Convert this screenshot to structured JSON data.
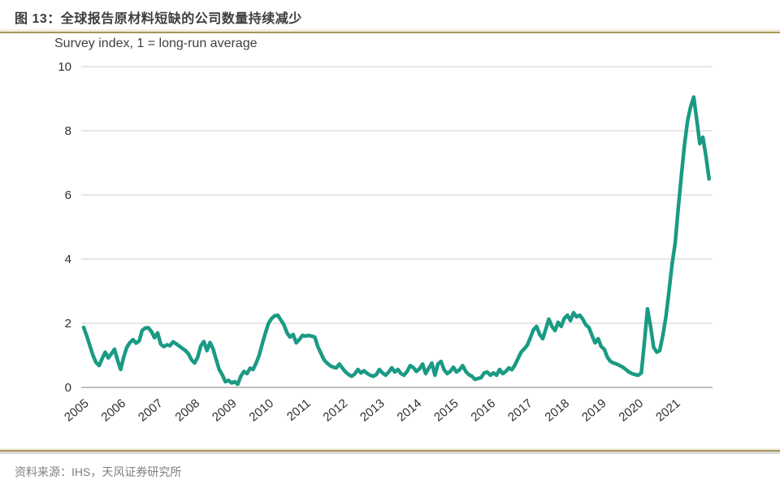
{
  "header": {
    "title": "图 13：全球报告原材料短缺的公司数量持续减少"
  },
  "footer": {
    "source": "资料来源：IHS，天风证券研究所"
  },
  "colors": {
    "line": "#1a9a84",
    "rule_gold": "#a6965a",
    "rule_cream": "#f2eedd",
    "grid": "#d8d8d8",
    "zero_axis": "#ababab",
    "title_text": "#3d3d3d",
    "axis_text": "#2e2e2e",
    "source_text": "#7f7f7f"
  },
  "chart_data": {
    "type": "line",
    "title": "全球报告原材料短缺的公司数量持续减少",
    "subtitle": "Survey index, 1 = long-run average",
    "xlabel": "",
    "ylabel": "",
    "x_tick_labels": [
      "2005",
      "2006",
      "2007",
      "2008",
      "2009",
      "2010",
      "2011",
      "2012",
      "2013",
      "2014",
      "2015",
      "2016",
      "2017",
      "2018",
      "2019",
      "2020",
      "2021"
    ],
    "y_ticks": [
      0,
      2,
      4,
      6,
      8,
      10
    ],
    "ylim": [
      0,
      10
    ],
    "xlim": [
      2005.0,
      2022.0
    ],
    "grid": "horizontal",
    "legend": "none",
    "series": [
      {
        "color": "#1a9a84",
        "x_start_year": 2005,
        "points_per_year": 12,
        "values": [
          1.87,
          1.6,
          1.3,
          1.0,
          0.78,
          0.68,
          0.9,
          1.1,
          0.92,
          1.05,
          1.19,
          0.85,
          0.56,
          0.95,
          1.25,
          1.4,
          1.49,
          1.38,
          1.45,
          1.78,
          1.85,
          1.86,
          1.74,
          1.55,
          1.7,
          1.35,
          1.27,
          1.33,
          1.3,
          1.42,
          1.36,
          1.29,
          1.22,
          1.15,
          1.05,
          0.86,
          0.76,
          0.94,
          1.29,
          1.43,
          1.15,
          1.4,
          1.2,
          0.87,
          0.56,
          0.39,
          0.18,
          0.22,
          0.14,
          0.18,
          0.1,
          0.35,
          0.5,
          0.43,
          0.6,
          0.56,
          0.76,
          1.01,
          1.37,
          1.7,
          2.0,
          2.15,
          2.23,
          2.25,
          2.1,
          1.95,
          1.7,
          1.57,
          1.65,
          1.39,
          1.49,
          1.62,
          1.6,
          1.62,
          1.6,
          1.57,
          1.27,
          1.06,
          0.86,
          0.76,
          0.68,
          0.63,
          0.61,
          0.73,
          0.6,
          0.48,
          0.4,
          0.35,
          0.42,
          0.56,
          0.45,
          0.52,
          0.44,
          0.38,
          0.35,
          0.4,
          0.56,
          0.45,
          0.38,
          0.48,
          0.61,
          0.48,
          0.56,
          0.43,
          0.38,
          0.5,
          0.68,
          0.62,
          0.5,
          0.58,
          0.73,
          0.43,
          0.6,
          0.76,
          0.38,
          0.73,
          0.81,
          0.55,
          0.43,
          0.5,
          0.63,
          0.48,
          0.55,
          0.68,
          0.5,
          0.4,
          0.35,
          0.25,
          0.28,
          0.3,
          0.45,
          0.48,
          0.38,
          0.45,
          0.38,
          0.56,
          0.43,
          0.5,
          0.61,
          0.55,
          0.7,
          0.9,
          1.1,
          1.2,
          1.32,
          1.55,
          1.8,
          1.9,
          1.65,
          1.52,
          1.82,
          2.13,
          1.9,
          1.77,
          2.03,
          1.9,
          2.15,
          2.25,
          2.08,
          2.33,
          2.2,
          2.25,
          2.13,
          1.95,
          1.87,
          1.62,
          1.39,
          1.52,
          1.27,
          1.19,
          0.94,
          0.81,
          0.76,
          0.73,
          0.68,
          0.63,
          0.56,
          0.48,
          0.43,
          0.4,
          0.38,
          0.45,
          1.4,
          2.45,
          1.9,
          1.25,
          1.1,
          1.15,
          1.62,
          2.2,
          3.0,
          3.85,
          4.5,
          5.6,
          6.6,
          7.55,
          8.3,
          8.75,
          9.05,
          8.35,
          7.6,
          7.8,
          7.2,
          6.5
        ]
      }
    ]
  }
}
